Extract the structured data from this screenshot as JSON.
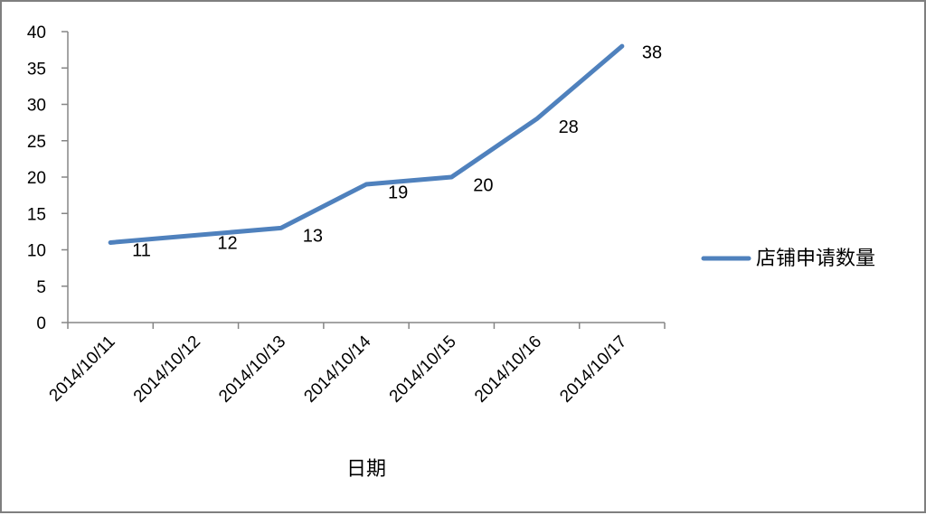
{
  "chart_data": {
    "type": "line",
    "xlabel": "日期",
    "ylabel": "",
    "categories": [
      "2014/10/11",
      "2014/10/12",
      "2014/10/13",
      "2014/10/14",
      "2014/10/15",
      "2014/10/16",
      "2014/10/17"
    ],
    "series": [
      {
        "name": "店铺申请数量",
        "values": [
          11,
          12,
          13,
          19,
          20,
          28,
          38
        ],
        "color": "#4f81bd"
      }
    ],
    "ylim": [
      0,
      40
    ],
    "yticks": [
      "0",
      "5",
      "10",
      "15",
      "20",
      "25",
      "30",
      "35",
      "40"
    ],
    "data_labels": [
      "11",
      "12",
      "13",
      "19",
      "20",
      "28",
      "38"
    ],
    "legend_position": "right",
    "grid": false
  }
}
